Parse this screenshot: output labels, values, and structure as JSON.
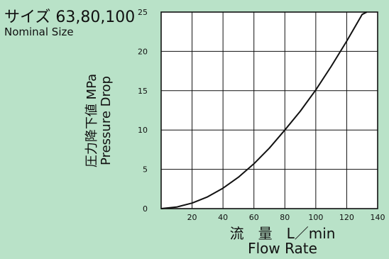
{
  "chart_data": {
    "type": "line",
    "title": "サイズ 63,80,100",
    "subtitle": "Nominal Size",
    "ylabel_ja": "圧力降下値 MPa",
    "ylabel_en": "Pressure Drop",
    "xlabel_ja": "流　量　L／min",
    "xlabel_en": "Flow Rate",
    "xlim": [
      0,
      140
    ],
    "ylim": [
      0,
      25
    ],
    "x_ticks": [
      0,
      20,
      40,
      60,
      80,
      100,
      120,
      140
    ],
    "x_tick_labels": [
      "",
      "20",
      "40",
      "60",
      "80",
      "100",
      "120",
      "140"
    ],
    "y_ticks": [
      0,
      5,
      10,
      15,
      20,
      25
    ],
    "y_tick_labels": [
      "0",
      "5",
      "10",
      "15",
      "20",
      "25"
    ],
    "grid": true,
    "series": [
      {
        "x": [
          0,
          10,
          20,
          30,
          40,
          50,
          60,
          70,
          80,
          90,
          100,
          110,
          120,
          130,
          133
        ],
        "y": [
          0,
          0.2,
          0.7,
          1.5,
          2.6,
          4.0,
          5.7,
          7.7,
          10.0,
          12.4,
          15.1,
          18.1,
          21.3,
          24.7,
          25.0
        ]
      }
    ],
    "colors": {
      "background": "#b9e2c8",
      "plot_bg": "#ffffff",
      "line": "#111111",
      "grid": "#111111"
    }
  }
}
